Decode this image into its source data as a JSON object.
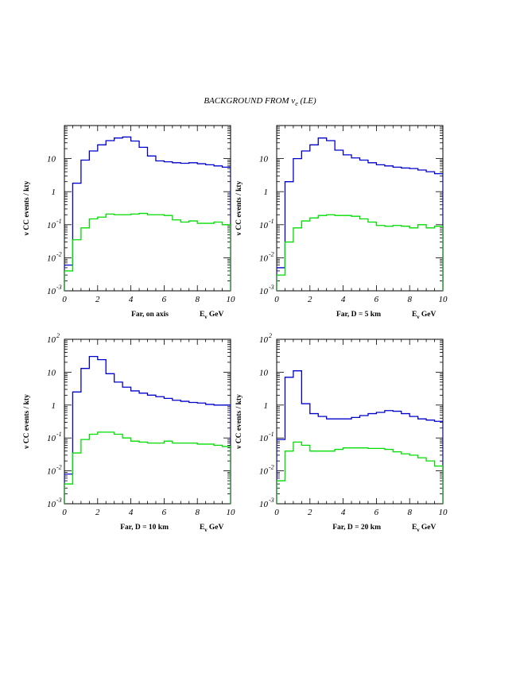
{
  "title": "BACKGROUND FROM ν",
  "title_sub": "e",
  "title_suffix": " (LE)",
  "colors": {
    "blue": "#0000cc",
    "green": "#00dd00",
    "frame": "#000000"
  },
  "chart_data": [
    {
      "type": "line",
      "step": true,
      "caption": "Far, on axis",
      "xlabel": "E",
      "xlabel_sub": "ν",
      "xlabel_unit": " GeV",
      "ylabel": "ν CC events / kty",
      "xlim": [
        0,
        10
      ],
      "ylim": [
        0.001,
        100
      ],
      "yscale": "log",
      "x_ticks": [
        0,
        2,
        4,
        6,
        8,
        10
      ],
      "y_ticks": [
        {
          "v": 0.001,
          "base": "10",
          "exp": "-3"
        },
        {
          "v": 0.01,
          "base": "10",
          "exp": "-2"
        },
        {
          "v": 0.1,
          "base": "10",
          "exp": "-1"
        },
        {
          "v": 1,
          "base": "1",
          "exp": ""
        },
        {
          "v": 10,
          "base": "10",
          "exp": ""
        }
      ],
      "bin_edges": [
        0,
        0.5,
        1,
        1.5,
        2,
        2.5,
        3,
        3.5,
        4,
        4.5,
        5,
        5.5,
        6,
        6.5,
        7,
        7.5,
        8,
        8.5,
        9,
        9.5,
        10
      ],
      "series": [
        {
          "color": "blue",
          "values": [
            0.006,
            1.8,
            9,
            17,
            26,
            35,
            42,
            45,
            34,
            22,
            12,
            8.5,
            8,
            7.5,
            7.2,
            7.5,
            7,
            6.5,
            6,
            5.5
          ]
        },
        {
          "color": "green",
          "values": [
            0.004,
            0.035,
            0.08,
            0.15,
            0.17,
            0.21,
            0.2,
            0.2,
            0.21,
            0.22,
            0.2,
            0.2,
            0.19,
            0.14,
            0.12,
            0.13,
            0.11,
            0.11,
            0.12,
            0.1
          ]
        }
      ]
    },
    {
      "type": "line",
      "step": true,
      "caption": "Far, D = 5 km",
      "xlabel": "E",
      "xlabel_sub": "ν",
      "xlabel_unit": " GeV",
      "ylabel": "ν CC events / kty",
      "xlim": [
        0,
        10
      ],
      "ylim": [
        0.001,
        100
      ],
      "yscale": "log",
      "x_ticks": [
        0,
        2,
        4,
        6,
        8,
        10
      ],
      "y_ticks": [
        {
          "v": 0.001,
          "base": "10",
          "exp": "-3"
        },
        {
          "v": 0.01,
          "base": "10",
          "exp": "-2"
        },
        {
          "v": 0.1,
          "base": "10",
          "exp": "-1"
        },
        {
          "v": 1,
          "base": "1",
          "exp": ""
        },
        {
          "v": 10,
          "base": "10",
          "exp": ""
        }
      ],
      "bin_edges": [
        0,
        0.5,
        1,
        1.5,
        2,
        2.5,
        3,
        3.5,
        4,
        4.5,
        5,
        5.5,
        6,
        6.5,
        7,
        7.5,
        8,
        8.5,
        9,
        9.5,
        10
      ],
      "series": [
        {
          "color": "blue",
          "values": [
            0.005,
            2,
            10,
            17,
            26,
            42,
            35,
            18,
            13,
            10.5,
            9,
            7.5,
            6.5,
            6,
            5.5,
            5.2,
            5,
            4.5,
            4,
            3.5
          ]
        },
        {
          "color": "green",
          "values": [
            0.003,
            0.03,
            0.08,
            0.13,
            0.16,
            0.19,
            0.2,
            0.19,
            0.19,
            0.18,
            0.15,
            0.12,
            0.095,
            0.09,
            0.095,
            0.09,
            0.08,
            0.1,
            0.08,
            0.09
          ]
        }
      ]
    },
    {
      "type": "line",
      "step": true,
      "caption": "Far, D = 10 km",
      "xlabel": "E",
      "xlabel_sub": "ν",
      "xlabel_unit": " GeV",
      "ylabel": "ν CC events / kty",
      "xlim": [
        0,
        10
      ],
      "ylim": [
        0.001,
        100
      ],
      "yscale": "log",
      "x_ticks": [
        0,
        2,
        4,
        6,
        8,
        10
      ],
      "y_ticks": [
        {
          "v": 0.001,
          "base": "10",
          "exp": "-3"
        },
        {
          "v": 0.01,
          "base": "10",
          "exp": "-2"
        },
        {
          "v": 0.1,
          "base": "10",
          "exp": "-1"
        },
        {
          "v": 1,
          "base": "1",
          "exp": ""
        },
        {
          "v": 10,
          "base": "10",
          "exp": ""
        },
        {
          "v": 100,
          "base": "10",
          "exp": "2"
        }
      ],
      "bin_edges": [
        0,
        0.5,
        1,
        1.5,
        2,
        2.5,
        3,
        3.5,
        4,
        4.5,
        5,
        5.5,
        6,
        6.5,
        7,
        7.5,
        8,
        8.5,
        9,
        9.5,
        10
      ],
      "series": [
        {
          "color": "blue",
          "values": [
            0.008,
            2.5,
            13,
            30,
            24,
            9,
            5,
            3.5,
            2.7,
            2.3,
            2,
            1.8,
            1.6,
            1.4,
            1.3,
            1.2,
            1.15,
            1.05,
            1,
            1
          ]
        },
        {
          "color": "green",
          "values": [
            0.004,
            0.035,
            0.09,
            0.13,
            0.15,
            0.15,
            0.13,
            0.1,
            0.08,
            0.075,
            0.07,
            0.07,
            0.08,
            0.07,
            0.07,
            0.07,
            0.065,
            0.065,
            0.06,
            0.055
          ]
        }
      ]
    },
    {
      "type": "line",
      "step": true,
      "caption": "Far, D = 20 km",
      "xlabel": "E",
      "xlabel_sub": "ν",
      "xlabel_unit": " GeV",
      "ylabel": "ν CC events / kty",
      "xlim": [
        0,
        10
      ],
      "ylim": [
        0.001,
        100
      ],
      "yscale": "log",
      "x_ticks": [
        0,
        2,
        4,
        6,
        8,
        10
      ],
      "y_ticks": [
        {
          "v": 0.001,
          "base": "10",
          "exp": "-3"
        },
        {
          "v": 0.01,
          "base": "10",
          "exp": "-2"
        },
        {
          "v": 0.1,
          "base": "10",
          "exp": "-1"
        },
        {
          "v": 1,
          "base": "1",
          "exp": ""
        },
        {
          "v": 10,
          "base": "10",
          "exp": ""
        },
        {
          "v": 100,
          "base": "10",
          "exp": "2"
        }
      ],
      "bin_edges": [
        0,
        0.5,
        1,
        1.5,
        2,
        2.5,
        3,
        3.5,
        4,
        4.5,
        5,
        5.5,
        6,
        6.5,
        7,
        7.5,
        8,
        8.5,
        9,
        9.5,
        10
      ],
      "series": [
        {
          "color": "blue",
          "values": [
            0.09,
            7,
            11,
            1.1,
            0.55,
            0.45,
            0.38,
            0.38,
            0.38,
            0.42,
            0.48,
            0.55,
            0.6,
            0.68,
            0.65,
            0.55,
            0.45,
            0.38,
            0.35,
            0.32
          ]
        },
        {
          "color": "green",
          "values": [
            0.005,
            0.04,
            0.075,
            0.06,
            0.04,
            0.04,
            0.04,
            0.045,
            0.05,
            0.05,
            0.05,
            0.048,
            0.048,
            0.045,
            0.038,
            0.033,
            0.03,
            0.025,
            0.02,
            0.014
          ]
        }
      ]
    }
  ]
}
